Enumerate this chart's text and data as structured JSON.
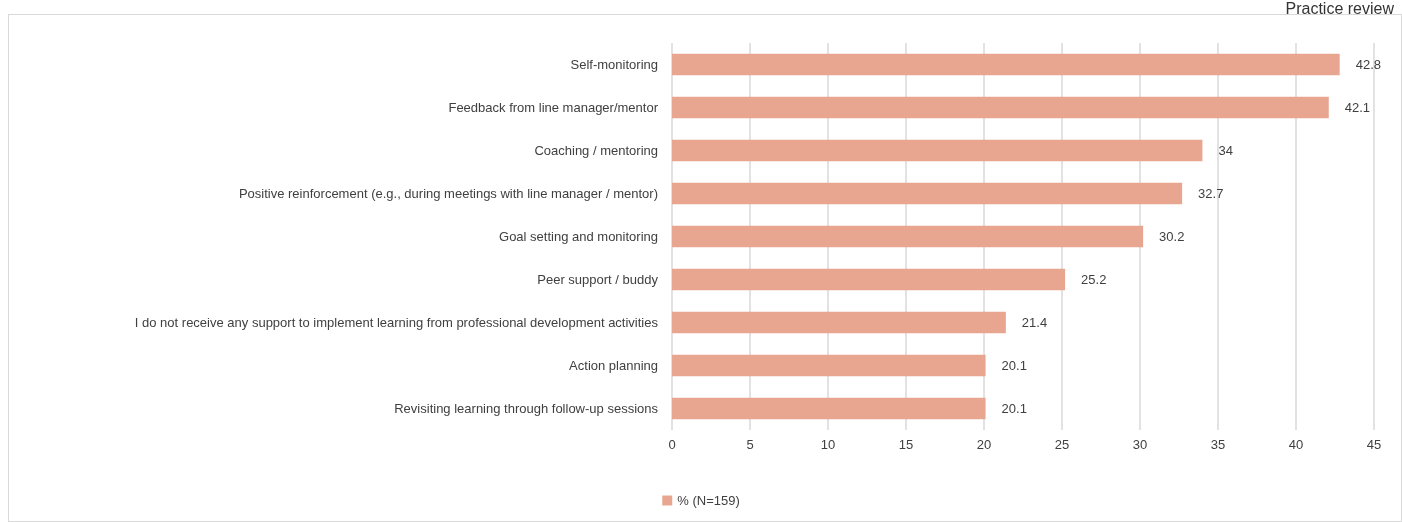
{
  "chart_data": {
    "type": "bar",
    "orientation": "horizontal",
    "annotations": [
      "Practice review"
    ],
    "categories": [
      "Self-monitoring",
      "Feedback from line manager/mentor",
      "Coaching / mentoring",
      "Positive reinforcement (e.g., during meetings with line manager / mentor)",
      "Goal setting and monitoring",
      "Peer support / buddy",
      "I do not receive any support to implement learning from professional development activities",
      "Action planning",
      "Revisiting learning through follow-up sessions"
    ],
    "series": [
      {
        "name": "% (N=159)",
        "color": "#e8a690",
        "values": [
          42.8,
          42.1,
          34,
          32.7,
          30.2,
          25.2,
          21.4,
          20.1,
          20.1
        ]
      }
    ],
    "xlim": [
      0,
      45
    ],
    "xticks": [
      0,
      5,
      10,
      15,
      20,
      25,
      30,
      35,
      40,
      45
    ],
    "grid": "x",
    "legend": "bottom",
    "data_labels": true
  }
}
